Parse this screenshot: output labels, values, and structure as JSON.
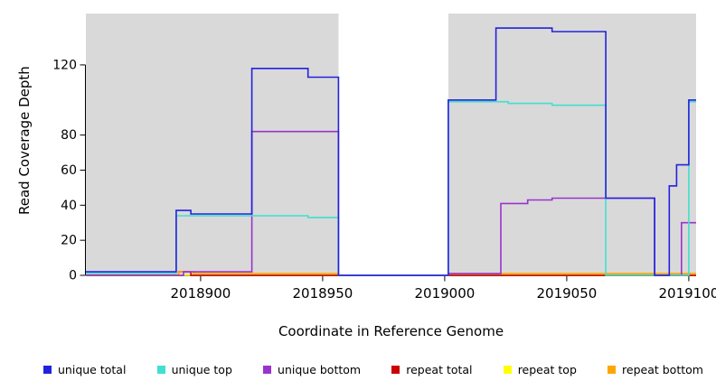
{
  "chart_data": {
    "type": "line",
    "subtype": "step-coverage",
    "title": "",
    "xlabel": "Coordinate in Reference Genome",
    "ylabel": "Read Coverage Depth",
    "xlim": [
      2018853,
      2019103
    ],
    "ylim": [
      0,
      149.3
    ],
    "x_ticks": [
      2018900,
      2018950,
      2019000,
      2019050,
      2019100
    ],
    "y_ticks": [
      0,
      20,
      40,
      60,
      80,
      120
    ],
    "grid": false,
    "background_color": "#ffffff",
    "background_regions": [
      {
        "name": "gray-block-left",
        "x0": 2018853,
        "x1": 2018956.5,
        "color": "#d9d9d9"
      },
      {
        "name": "gray-block-right",
        "x0": 2019001.5,
        "x1": 2019103,
        "color": "#d9d9d9"
      }
    ],
    "series": [
      {
        "name": "repeat top",
        "color": "#ffff00",
        "points": [
          [
            2018853,
            0
          ]
        ]
      },
      {
        "name": "repeat total",
        "color": "#cc0000",
        "points": [
          [
            2018853,
            0
          ],
          [
            2018891,
            2
          ],
          [
            2018896,
            0
          ]
        ]
      },
      {
        "name": "repeat bottom",
        "color": "#ffa500",
        "points": [
          [
            2018853,
            0
          ],
          [
            2018891,
            2
          ],
          [
            2018897,
            1
          ],
          [
            2018956.5,
            0
          ],
          [
            2019001.5,
            1
          ]
        ]
      },
      {
        "name": "unique bottom",
        "color": "#9933cc",
        "points": [
          [
            2018853,
            0
          ],
          [
            2018893,
            2
          ],
          [
            2018921,
            82
          ],
          [
            2018956.5,
            0
          ],
          [
            2019001.5,
            1
          ],
          [
            2019023,
            41
          ],
          [
            2019034,
            43
          ],
          [
            2019044,
            44
          ],
          [
            2019086,
            0
          ],
          [
            2019097,
            30
          ]
        ]
      },
      {
        "name": "unique top",
        "color": "#40e0d0",
        "points": [
          [
            2018853,
            1
          ],
          [
            2018890,
            34
          ],
          [
            2018944,
            33
          ],
          [
            2018956.5,
            0
          ],
          [
            2019001.5,
            99
          ],
          [
            2019026,
            98
          ],
          [
            2019044,
            97
          ],
          [
            2019066,
            0
          ],
          [
            2019100,
            99
          ]
        ]
      },
      {
        "name": "unique total",
        "color": "#2222dd",
        "points": [
          [
            2018853,
            2
          ],
          [
            2018890,
            37
          ],
          [
            2018896,
            35
          ],
          [
            2018921,
            118
          ],
          [
            2018944,
            113
          ],
          [
            2018956.5,
            0
          ],
          [
            2019001.5,
            100
          ],
          [
            2019021,
            141
          ],
          [
            2019044,
            139
          ],
          [
            2019066,
            44
          ],
          [
            2019086,
            0
          ],
          [
            2019092,
            51
          ],
          [
            2019095,
            63
          ],
          [
            2019100,
            100
          ]
        ]
      }
    ],
    "legend": {
      "position": "bottom",
      "items": [
        {
          "label": "unique total",
          "color": "#2222dd"
        },
        {
          "label": "unique top",
          "color": "#40e0d0"
        },
        {
          "label": "unique bottom",
          "color": "#9933cc"
        },
        {
          "label": "repeat total",
          "color": "#cc0000"
        },
        {
          "label": "repeat top",
          "color": "#ffff00"
        },
        {
          "label": "repeat bottom",
          "color": "#ffa500"
        }
      ]
    }
  }
}
